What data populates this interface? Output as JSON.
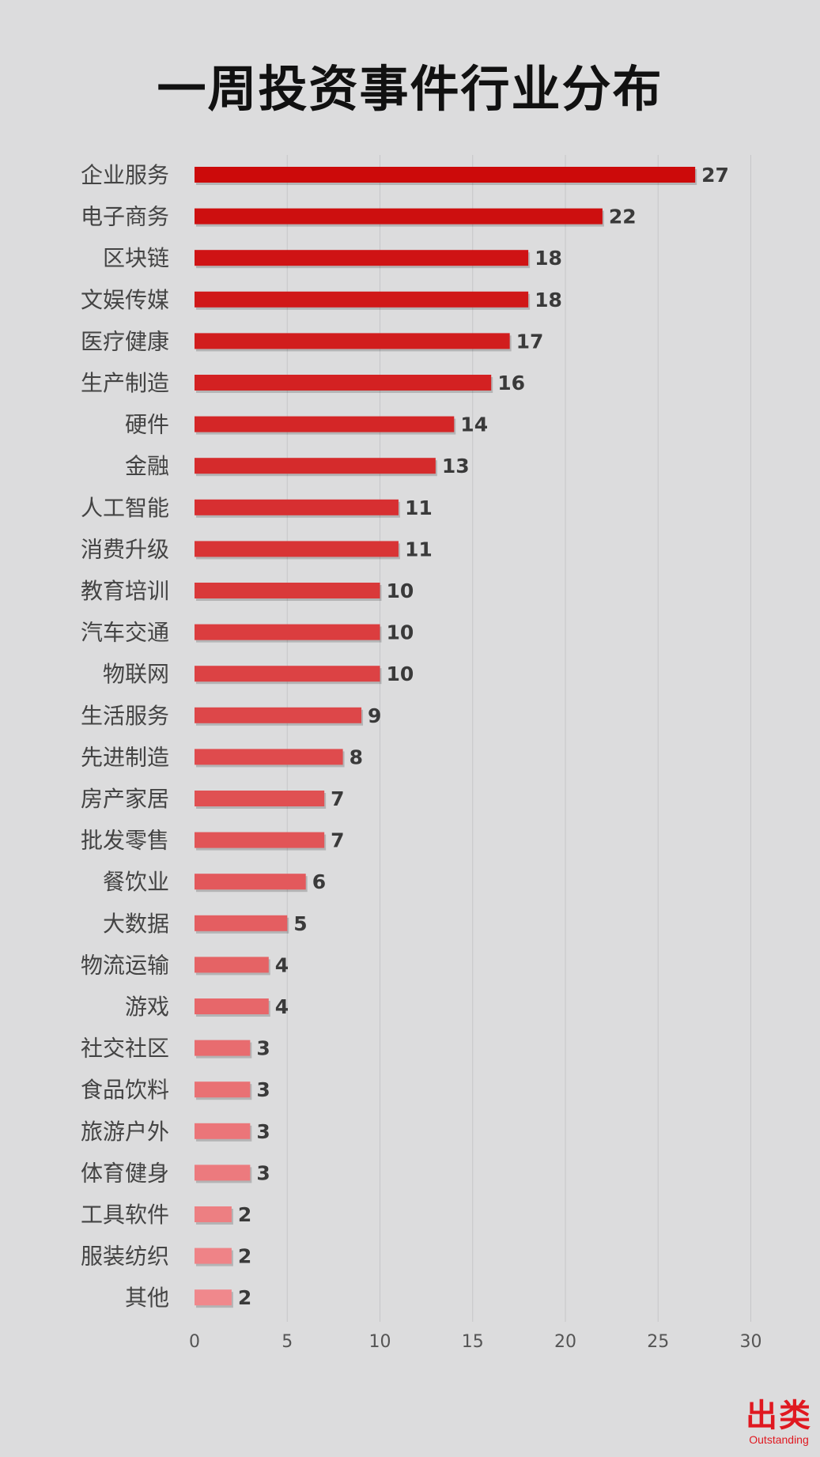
{
  "chart_data": {
    "type": "bar",
    "orientation": "horizontal",
    "title": "一周投资事件行业分布",
    "categories": [
      "企业服务",
      "电子商务",
      "区块链",
      "文娱传媒",
      "医疗健康",
      "生产制造",
      "硬件",
      "金融",
      "人工智能",
      "消费升级",
      "教育培训",
      "汽车交通",
      "物联网",
      "生活服务",
      "先进制造",
      "房产家居",
      "批发零售",
      "餐饮业",
      "大数据",
      "物流运输",
      "游戏",
      "社交社区",
      "食品饮料",
      "旅游户外",
      "体育健身",
      "工具软件",
      "服装纺织",
      "其他"
    ],
    "values": [
      27,
      22,
      18,
      18,
      17,
      16,
      14,
      13,
      11,
      11,
      10,
      10,
      10,
      9,
      8,
      7,
      7,
      6,
      5,
      4,
      4,
      3,
      3,
      3,
      3,
      2,
      2,
      2
    ],
    "xlim": [
      0,
      30
    ],
    "xticks": [
      0,
      5,
      10,
      15,
      20,
      25,
      30
    ],
    "grid": true,
    "bar_color_top": "#cc0a0a",
    "bar_color_bottom": "#f0888c"
  },
  "logo": {
    "main": "出类",
    "sub": "Outstanding"
  }
}
